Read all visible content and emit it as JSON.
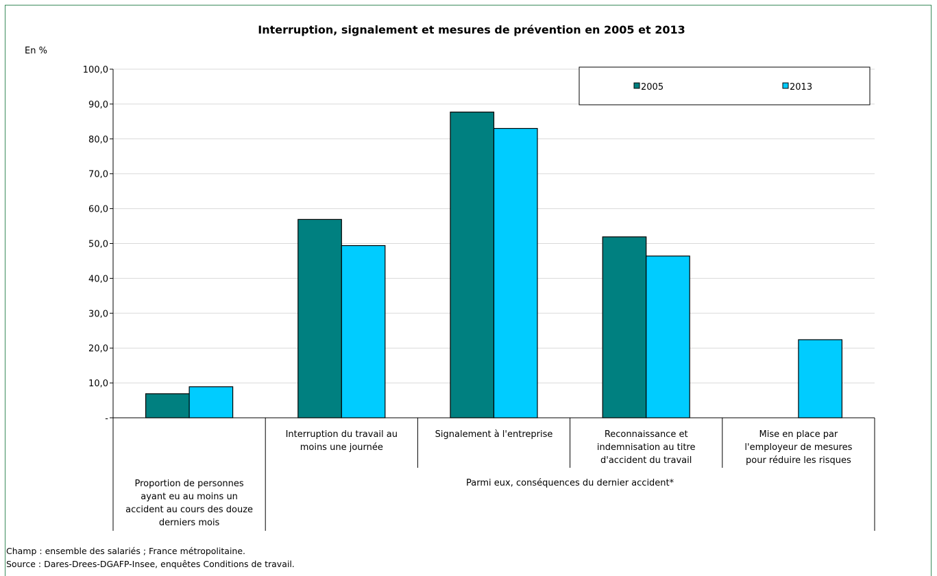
{
  "chart_data": {
    "type": "bar",
    "title": "Interruption, signalement et mesures de prévention en 2005 et 2013",
    "unit_label": "En %",
    "ylim": [
      0,
      100
    ],
    "yticks": [
      "-",
      "10,0",
      "20,0",
      "30,0",
      "40,0",
      "50,0",
      "60,0",
      "70,0",
      "80,0",
      "90,0",
      "100,0"
    ],
    "grid": true,
    "legend_position": "top-right",
    "categories": [
      "Proportion de personnes ayant eu au moins un accident au cours des douze derniers mois",
      "Interruption du travail au moins une journée",
      "Signalement à l'entreprise",
      "Reconnaissance et indemnisation au titre d'accident du travail",
      "Mise en place par l'employeur de mesures pour réduire les risques"
    ],
    "category_lines": [
      [
        "Proportion de personnes",
        "ayant eu au moins un",
        "accident au cours des douze",
        "derniers mois"
      ],
      [
        "Interruption du travail au",
        "moins une journée"
      ],
      [
        "Signalement à l'entreprise"
      ],
      [
        "Reconnaissance et",
        "indemnisation au titre",
        "d'accident du travail"
      ],
      [
        "Mise en place par",
        "l'employeur de mesures",
        "pour réduire les risques"
      ]
    ],
    "group_label": "Parmi eux, conséquences du dernier accident*",
    "series": [
      {
        "name": "2005",
        "color": "#008080",
        "values": [
          6.9,
          56.9,
          87.7,
          51.9,
          null
        ]
      },
      {
        "name": "2013",
        "color": "#00ccff",
        "values": [
          8.9,
          49.4,
          83.0,
          46.4,
          22.4
        ]
      }
    ]
  },
  "notes": {
    "champ": "Champ : ensemble des salariés ; France métropolitaine.",
    "source": "Source : Dares-Drees-DGAFP-Insee, enquêtes Conditions de travail."
  }
}
